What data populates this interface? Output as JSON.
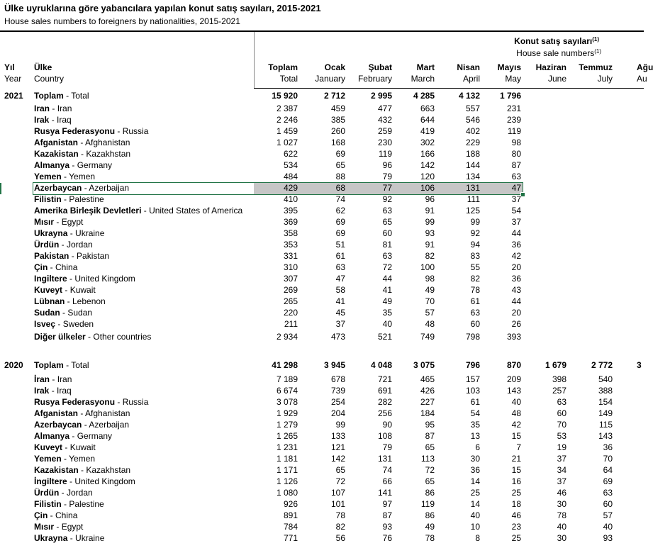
{
  "title": "Ülke uyruklarına göre yabancılara yapılan konut satış sayıları, 2015-2021",
  "subtitle": "House sales numbers to foreigners by nationalities, 2015-2021",
  "header": {
    "group_tr": "Konut satış sayıları",
    "group_tr_note": "(1)",
    "group_en": "House sale numbers",
    "group_en_note": "(1)",
    "year_tr": "Yıl",
    "year_en": "Year",
    "country_tr": "Ülke",
    "country_en": "Country",
    "columns": [
      {
        "tr": "Toplam",
        "en": "Total"
      },
      {
        "tr": "Ocak",
        "en": "January"
      },
      {
        "tr": "Şubat",
        "en": "February"
      },
      {
        "tr": "Mart",
        "en": "March"
      },
      {
        "tr": "Nisan",
        "en": "April"
      },
      {
        "tr": "Mayıs",
        "en": "May"
      },
      {
        "tr": "Haziran",
        "en": "June"
      },
      {
        "tr": "Temmuz",
        "en": "July"
      },
      {
        "tr": "Ağu",
        "en": "Au"
      }
    ]
  },
  "sections": [
    {
      "year": "2021",
      "rows": [
        {
          "tr": "Toplam",
          "en": "Total",
          "values": [
            "15 920",
            "2 712",
            "2 995",
            "4 285",
            "4 132",
            "1 796"
          ]
        },
        {
          "tr": "Iran",
          "en": "Iran",
          "values": [
            "2 387",
            "459",
            "477",
            "663",
            "557",
            "231"
          ]
        },
        {
          "tr": "Irak",
          "en": "Iraq",
          "values": [
            "2 246",
            "385",
            "432",
            "644",
            "546",
            "239"
          ]
        },
        {
          "tr": "Rusya Federasyonu",
          "en": "Russia",
          "values": [
            "1 459",
            "260",
            "259",
            "419",
            "402",
            "119"
          ]
        },
        {
          "tr": "Afganistan",
          "en": "Afghanistan",
          "values": [
            "1 027",
            "168",
            "230",
            "302",
            "229",
            "98"
          ]
        },
        {
          "tr": "Kazakistan",
          "en": "Kazakhstan",
          "values": [
            "622",
            "69",
            "119",
            "166",
            "188",
            "80"
          ]
        },
        {
          "tr": "Almanya",
          "en": "Germany",
          "values": [
            "534",
            "65",
            "96",
            "142",
            "144",
            "87"
          ]
        },
        {
          "tr": "Yemen",
          "en": "Yemen",
          "values": [
            "484",
            "88",
            "79",
            "120",
            "134",
            "63"
          ]
        },
        {
          "tr": "Azerbaycan",
          "en": "Azerbaijan",
          "values": [
            "429",
            "68",
            "77",
            "106",
            "131",
            "47"
          ]
        },
        {
          "tr": "Filistin",
          "en": "Palestine",
          "values": [
            "410",
            "74",
            "92",
            "96",
            "111",
            "37"
          ]
        },
        {
          "tr": "Amerika Birleşik Devletleri",
          "en": "United States of America",
          "values": [
            "395",
            "62",
            "63",
            "91",
            "125",
            "54"
          ]
        },
        {
          "tr": "Mısır",
          "en": "Egypt",
          "values": [
            "369",
            "69",
            "65",
            "99",
            "99",
            "37"
          ]
        },
        {
          "tr": "Ukrayna",
          "en": "Ukraine",
          "values": [
            "358",
            "69",
            "60",
            "93",
            "92",
            "44"
          ]
        },
        {
          "tr": "Ürdün",
          "en": "Jordan",
          "values": [
            "353",
            "51",
            "81",
            "91",
            "94",
            "36"
          ]
        },
        {
          "tr": "Pakistan",
          "en": "Pakistan",
          "values": [
            "331",
            "61",
            "63",
            "82",
            "83",
            "42"
          ]
        },
        {
          "tr": "Çin",
          "en": "China",
          "values": [
            "310",
            "63",
            "72",
            "100",
            "55",
            "20"
          ]
        },
        {
          "tr": "Ingiltere",
          "en": "United Kingdom",
          "values": [
            "307",
            "47",
            "44",
            "98",
            "82",
            "36"
          ]
        },
        {
          "tr": "Kuveyt",
          "en": "Kuwait",
          "values": [
            "269",
            "58",
            "41",
            "49",
            "78",
            "43"
          ]
        },
        {
          "tr": "Lübnan",
          "en": "Lebenon",
          "values": [
            "265",
            "41",
            "49",
            "70",
            "61",
            "44"
          ]
        },
        {
          "tr": "Sudan",
          "en": "Sudan",
          "values": [
            "220",
            "45",
            "35",
            "57",
            "63",
            "20"
          ]
        },
        {
          "tr": "Isveç",
          "en": "Sweden",
          "values": [
            "211",
            "37",
            "40",
            "48",
            "60",
            "26"
          ]
        },
        {
          "tr": "Diğer ülkeler",
          "en": "Other countries",
          "values": [
            "2 934",
            "473",
            "521",
            "749",
            "798",
            "393"
          ]
        }
      ]
    },
    {
      "year": "2020",
      "rows": [
        {
          "tr": "Toplam",
          "en": "Total",
          "values": [
            "41 298",
            "3 945",
            "4 048",
            "3 075",
            "796",
            "870",
            "1 679",
            "2 772",
            "3"
          ]
        },
        {
          "tr": "İran",
          "en": "Iran",
          "values": [
            "7 189",
            "678",
            "721",
            "465",
            "157",
            "209",
            "398",
            "540"
          ]
        },
        {
          "tr": "Irak",
          "en": "Iraq",
          "values": [
            "6 674",
            "739",
            "691",
            "426",
            "103",
            "143",
            "257",
            "388"
          ]
        },
        {
          "tr": "Rusya Federasyonu",
          "en": "Russia",
          "values": [
            "3 078",
            "254",
            "282",
            "227",
            "61",
            "40",
            "63",
            "154"
          ]
        },
        {
          "tr": "Afganistan",
          "en": "Afghanistan",
          "values": [
            "1 929",
            "204",
            "256",
            "184",
            "54",
            "48",
            "60",
            "149"
          ]
        },
        {
          "tr": "Azerbaycan",
          "en": "Azerbaijan",
          "values": [
            "1 279",
            "99",
            "90",
            "95",
            "35",
            "42",
            "70",
            "115"
          ]
        },
        {
          "tr": "Almanya",
          "en": "Germany",
          "values": [
            "1 265",
            "133",
            "108",
            "87",
            "13",
            "15",
            "53",
            "143"
          ]
        },
        {
          "tr": "Kuveyt",
          "en": "Kuwait",
          "values": [
            "1 231",
            "121",
            "79",
            "65",
            "6",
            "7",
            "19",
            "36"
          ]
        },
        {
          "tr": "Yemen",
          "en": "Yemen",
          "values": [
            "1 181",
            "142",
            "131",
            "113",
            "30",
            "21",
            "37",
            "70"
          ]
        },
        {
          "tr": "Kazakistan",
          "en": "Kazakhstan",
          "values": [
            "1 171",
            "65",
            "74",
            "72",
            "36",
            "15",
            "34",
            "64"
          ]
        },
        {
          "tr": "İngiltere",
          "en": "United Kingdom",
          "values": [
            "1 126",
            "72",
            "66",
            "65",
            "14",
            "16",
            "37",
            "69"
          ]
        },
        {
          "tr": "Ürdün",
          "en": "Jordan",
          "values": [
            "1 080",
            "107",
            "141",
            "86",
            "25",
            "25",
            "46",
            "63"
          ]
        },
        {
          "tr": "Filistin",
          "en": "Palestine",
          "values": [
            "926",
            "101",
            "97",
            "119",
            "14",
            "18",
            "30",
            "60"
          ]
        },
        {
          "tr": "Çin",
          "en": "China",
          "values": [
            "891",
            "78",
            "87",
            "86",
            "40",
            "46",
            "78",
            "57"
          ]
        },
        {
          "tr": "Mısır",
          "en": "Egypt",
          "values": [
            "784",
            "82",
            "93",
            "49",
            "10",
            "23",
            "40",
            "40"
          ]
        },
        {
          "tr": "Ukrayna",
          "en": "Ukraine",
          "values": [
            "771",
            "56",
            "76",
            "78",
            "8",
            "25",
            "30",
            "93"
          ]
        }
      ]
    }
  ]
}
